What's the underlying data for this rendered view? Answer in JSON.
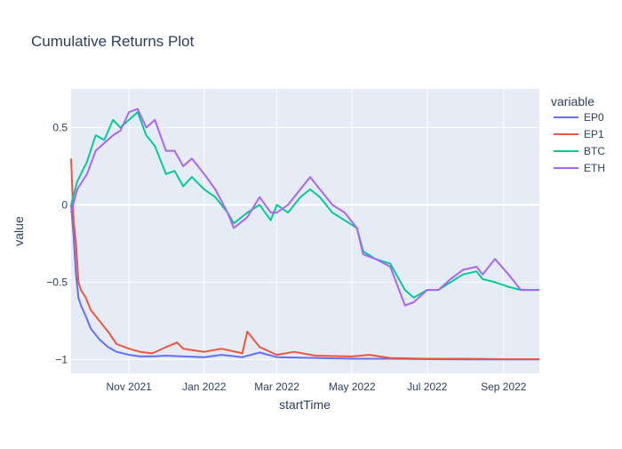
{
  "chart_data": {
    "type": "line",
    "title": "Cumulative Returns Plot",
    "xlabel": "startTime",
    "ylabel": "value",
    "legend_title": "variable",
    "legend_position": "right",
    "grid": true,
    "x_range": [
      "2021-09-15",
      "2022-09-30"
    ],
    "ylim": [
      -1.09,
      0.75
    ],
    "x_ticks": [
      {
        "value": "2021-11-01",
        "label": "Nov 2021"
      },
      {
        "value": "2022-01-01",
        "label": "Jan 2022"
      },
      {
        "value": "2022-03-01",
        "label": "Mar 2022"
      },
      {
        "value": "2022-05-01",
        "label": "May 2022"
      },
      {
        "value": "2022-07-01",
        "label": "Jul 2022"
      },
      {
        "value": "2022-09-01",
        "label": "Sep 2022"
      }
    ],
    "y_ticks": [
      {
        "value": 0.5,
        "label": "0.5"
      },
      {
        "value": 0,
        "label": "0"
      },
      {
        "value": -0.5,
        "label": "−0.5"
      },
      {
        "value": -1,
        "label": "−1"
      }
    ],
    "series": [
      {
        "name": "EP0",
        "color": "#636efa",
        "x": [
          "2021-09-15",
          "2021-09-17",
          "2021-09-19",
          "2021-09-21",
          "2021-09-23",
          "2021-09-27",
          "2021-10-01",
          "2021-10-08",
          "2021-10-15",
          "2021-10-22",
          "2021-11-01",
          "2021-11-10",
          "2021-11-20",
          "2021-12-01",
          "2021-12-15",
          "2022-01-01",
          "2022-01-15",
          "2022-02-01",
          "2022-02-15",
          "2022-03-01",
          "2022-04-01",
          "2022-05-01",
          "2022-06-01",
          "2022-07-01",
          "2022-08-01",
          "2022-09-01",
          "2022-09-30"
        ],
        "y": [
          0.0,
          -0.2,
          -0.45,
          -0.6,
          -0.65,
          -0.72,
          -0.8,
          -0.87,
          -0.92,
          -0.95,
          -0.97,
          -0.98,
          -0.98,
          -0.975,
          -0.98,
          -0.985,
          -0.97,
          -0.985,
          -0.955,
          -0.985,
          -0.99,
          -0.995,
          -0.995,
          -0.998,
          -0.999,
          -0.999,
          -0.999
        ]
      },
      {
        "name": "EP1",
        "color": "#ef553b",
        "x": [
          "2021-09-15",
          "2021-09-17",
          "2021-09-19",
          "2021-09-21",
          "2021-09-23",
          "2021-09-27",
          "2021-10-01",
          "2021-10-08",
          "2021-10-15",
          "2021-10-22",
          "2021-11-01",
          "2021-11-10",
          "2021-11-20",
          "2021-12-01",
          "2021-12-10",
          "2021-12-15",
          "2022-01-01",
          "2022-01-15",
          "2022-02-01",
          "2022-02-05",
          "2022-02-15",
          "2022-03-01",
          "2022-03-15",
          "2022-04-01",
          "2022-05-01",
          "2022-05-15",
          "2022-06-01",
          "2022-07-01",
          "2022-08-01",
          "2022-09-01",
          "2022-09-30"
        ],
        "y": [
          0.3,
          -0.1,
          -0.25,
          -0.5,
          -0.55,
          -0.6,
          -0.68,
          -0.75,
          -0.82,
          -0.9,
          -0.93,
          -0.95,
          -0.96,
          -0.92,
          -0.89,
          -0.93,
          -0.95,
          -0.93,
          -0.96,
          -0.82,
          -0.92,
          -0.97,
          -0.95,
          -0.975,
          -0.98,
          -0.97,
          -0.99,
          -0.995,
          -0.995,
          -0.998,
          -0.998
        ]
      },
      {
        "name": "BTC",
        "color": "#00cc96",
        "x": [
          "2021-09-15",
          "2021-09-20",
          "2021-09-28",
          "2021-10-05",
          "2021-10-12",
          "2021-10-19",
          "2021-10-25",
          "2021-11-01",
          "2021-11-08",
          "2021-11-15",
          "2021-11-22",
          "2021-12-01",
          "2021-12-08",
          "2021-12-15",
          "2021-12-22",
          "2022-01-01",
          "2022-01-10",
          "2022-01-20",
          "2022-01-25",
          "2022-02-05",
          "2022-02-15",
          "2022-02-24",
          "2022-03-01",
          "2022-03-10",
          "2022-03-20",
          "2022-03-28",
          "2022-04-05",
          "2022-04-15",
          "2022-04-25",
          "2022-05-05",
          "2022-05-10",
          "2022-05-20",
          "2022-06-01",
          "2022-06-13",
          "2022-06-20",
          "2022-07-01",
          "2022-07-10",
          "2022-07-20",
          "2022-07-30",
          "2022-08-10",
          "2022-08-15",
          "2022-08-25",
          "2022-09-05",
          "2022-09-15",
          "2022-09-30"
        ],
        "y": [
          0.0,
          0.15,
          0.28,
          0.45,
          0.42,
          0.55,
          0.5,
          0.55,
          0.6,
          0.45,
          0.38,
          0.2,
          0.22,
          0.12,
          0.18,
          0.1,
          0.05,
          -0.05,
          -0.12,
          -0.05,
          0.0,
          -0.1,
          0.0,
          -0.05,
          0.05,
          0.1,
          0.05,
          -0.05,
          -0.1,
          -0.15,
          -0.3,
          -0.35,
          -0.38,
          -0.55,
          -0.6,
          -0.55,
          -0.55,
          -0.5,
          -0.45,
          -0.43,
          -0.48,
          -0.5,
          -0.53,
          -0.55,
          -0.55
        ]
      },
      {
        "name": "ETH",
        "color": "#ab63fa",
        "x": [
          "2021-09-15",
          "2021-09-20",
          "2021-09-28",
          "2021-10-05",
          "2021-10-12",
          "2021-10-19",
          "2021-10-25",
          "2021-11-01",
          "2021-11-08",
          "2021-11-15",
          "2021-11-22",
          "2021-12-01",
          "2021-12-08",
          "2021-12-15",
          "2021-12-22",
          "2022-01-01",
          "2022-01-10",
          "2022-01-20",
          "2022-01-25",
          "2022-02-05",
          "2022-02-15",
          "2022-02-24",
          "2022-03-01",
          "2022-03-10",
          "2022-03-20",
          "2022-03-28",
          "2022-04-05",
          "2022-04-15",
          "2022-04-25",
          "2022-05-05",
          "2022-05-10",
          "2022-05-20",
          "2022-06-01",
          "2022-06-13",
          "2022-06-20",
          "2022-07-01",
          "2022-07-10",
          "2022-07-20",
          "2022-07-30",
          "2022-08-10",
          "2022-08-15",
          "2022-08-25",
          "2022-09-05",
          "2022-09-15",
          "2022-09-30"
        ],
        "y": [
          -0.05,
          0.1,
          0.2,
          0.35,
          0.4,
          0.45,
          0.48,
          0.6,
          0.62,
          0.5,
          0.55,
          0.35,
          0.35,
          0.25,
          0.3,
          0.2,
          0.1,
          -0.05,
          -0.15,
          -0.08,
          0.05,
          -0.05,
          -0.05,
          0.0,
          0.1,
          0.18,
          0.1,
          0.0,
          -0.05,
          -0.15,
          -0.32,
          -0.35,
          -0.4,
          -0.65,
          -0.63,
          -0.55,
          -0.55,
          -0.48,
          -0.42,
          -0.4,
          -0.45,
          -0.35,
          -0.45,
          -0.55,
          -0.55
        ]
      }
    ]
  }
}
